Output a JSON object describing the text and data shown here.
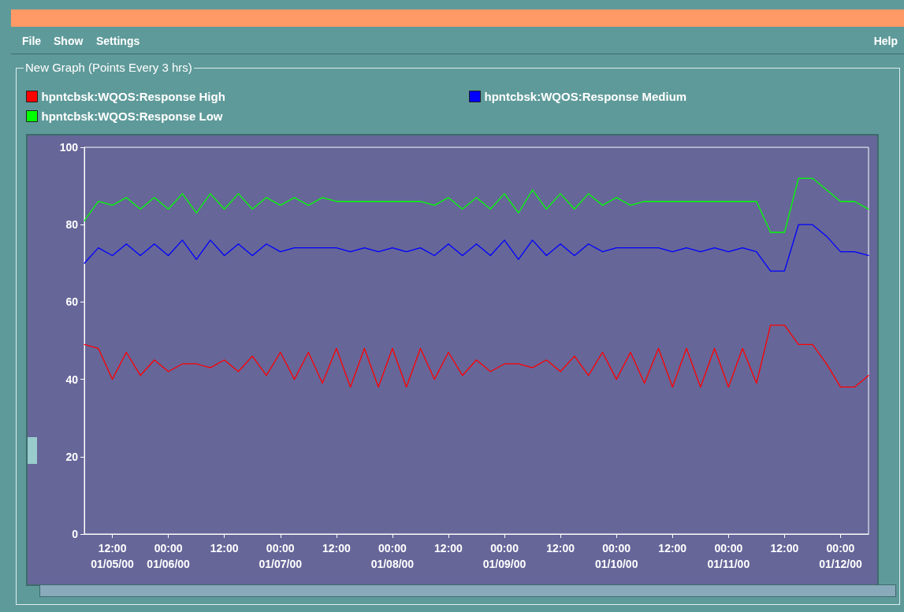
{
  "chart_data": {
    "type": "line",
    "title": "New Graph (Points Every 3 hrs)",
    "annotations": [
      "File",
      "Show",
      "Settings",
      "Help"
    ],
    "x": [
      "2000-01-05T06:00",
      "2000-01-05T09:00",
      "2000-01-05T12:00",
      "2000-01-05T15:00",
      "2000-01-05T18:00",
      "2000-01-05T21:00",
      "2000-01-06T00:00",
      "2000-01-06T03:00",
      "2000-01-06T06:00",
      "2000-01-06T09:00",
      "2000-01-06T12:00",
      "2000-01-06T15:00",
      "2000-01-06T18:00",
      "2000-01-06T21:00",
      "2000-01-07T00:00",
      "2000-01-07T03:00",
      "2000-01-07T06:00",
      "2000-01-07T09:00",
      "2000-01-07T12:00",
      "2000-01-07T15:00",
      "2000-01-07T18:00",
      "2000-01-07T21:00",
      "2000-01-08T00:00",
      "2000-01-08T03:00",
      "2000-01-08T06:00",
      "2000-01-08T09:00",
      "2000-01-08T12:00",
      "2000-01-08T15:00",
      "2000-01-08T18:00",
      "2000-01-08T21:00",
      "2000-01-09T00:00",
      "2000-01-09T03:00",
      "2000-01-09T06:00",
      "2000-01-09T09:00",
      "2000-01-09T12:00",
      "2000-01-09T15:00",
      "2000-01-09T18:00",
      "2000-01-09T21:00",
      "2000-01-10T00:00",
      "2000-01-10T03:00",
      "2000-01-10T06:00",
      "2000-01-10T09:00",
      "2000-01-10T12:00",
      "2000-01-10T15:00",
      "2000-01-10T18:00",
      "2000-01-10T21:00",
      "2000-01-11T00:00",
      "2000-01-11T03:00",
      "2000-01-11T06:00",
      "2000-01-11T09:00",
      "2000-01-11T12:00",
      "2000-01-11T15:00",
      "2000-01-11T18:00",
      "2000-01-11T21:00",
      "2000-01-12T00:00",
      "2000-01-12T03:00",
      "2000-01-12T06:00"
    ],
    "series": [
      {
        "name": "hpntcbsk:WQOS:Response High",
        "color": "#ff0000",
        "values": [
          49,
          48,
          40,
          47,
          41,
          45,
          42,
          44,
          44,
          43,
          45,
          42,
          46,
          41,
          47,
          40,
          47,
          39,
          48,
          38,
          48,
          38,
          48,
          38,
          48,
          40,
          47,
          41,
          45,
          42,
          44,
          44,
          43,
          45,
          42,
          46,
          41,
          47,
          40,
          47,
          39,
          48,
          38,
          48,
          38,
          48,
          38,
          48,
          39,
          54,
          54,
          49,
          49,
          44,
          38,
          38,
          41
        ]
      },
      {
        "name": "hpntcbsk:WQOS:Response Medium",
        "color": "#0000ff",
        "values": [
          70,
          74,
          72,
          75,
          72,
          75,
          72,
          76,
          71,
          76,
          72,
          75,
          72,
          75,
          73,
          74,
          74,
          74,
          74,
          73,
          74,
          73,
          74,
          73,
          74,
          72,
          75,
          72,
          75,
          72,
          76,
          71,
          76,
          72,
          75,
          72,
          75,
          73,
          74,
          74,
          74,
          74,
          73,
          74,
          73,
          74,
          73,
          74,
          73,
          68,
          68,
          80,
          80,
          77,
          73,
          73,
          72
        ]
      },
      {
        "name": "hpntcbsk:WQOS:Response Low",
        "color": "#00ff00",
        "values": [
          81,
          86,
          85,
          87,
          84,
          87,
          84,
          88,
          83,
          88,
          84,
          88,
          84,
          87,
          85,
          87,
          85,
          87,
          86,
          86,
          86,
          86,
          86,
          86,
          86,
          85,
          87,
          84,
          87,
          84,
          88,
          83,
          89,
          84,
          88,
          84,
          88,
          85,
          87,
          85,
          86,
          86,
          86,
          86,
          86,
          86,
          86,
          86,
          86,
          78,
          78,
          92,
          92,
          89,
          86,
          86,
          84
        ]
      }
    ],
    "xlim": [
      "2000-01-05T06:00",
      "2000-01-12T06:00"
    ],
    "xticks": [
      {
        "value": "2000-01-05T12:00",
        "label": "12:00\n01/05/00"
      },
      {
        "value": "2000-01-06T00:00",
        "label": "00:00\n01/06/00"
      },
      {
        "value": "2000-01-06T12:00",
        "label": "12:00"
      },
      {
        "value": "2000-01-07T00:00",
        "label": "00:00\n01/07/00"
      },
      {
        "value": "2000-01-07T12:00",
        "label": "12:00"
      },
      {
        "value": "2000-01-08T00:00",
        "label": "00:00\n01/08/00"
      },
      {
        "value": "2000-01-08T12:00",
        "label": "12:00"
      },
      {
        "value": "2000-01-09T00:00",
        "label": "00:00\n01/09/00"
      },
      {
        "value": "2000-01-09T12:00",
        "label": "12:00"
      },
      {
        "value": "2000-01-10T00:00",
        "label": "00:00\n01/10/00"
      },
      {
        "value": "2000-01-10T12:00",
        "label": "12:00"
      },
      {
        "value": "2000-01-11T00:00",
        "label": "00:00\n01/11/00"
      },
      {
        "value": "2000-01-11T12:00",
        "label": "12:00"
      },
      {
        "value": "2000-01-12T00:00",
        "label": "00:00\n01/12/00"
      }
    ],
    "ylim": [
      0,
      100
    ],
    "yticks": [
      0,
      20,
      40,
      60,
      80,
      100
    ],
    "grid": false,
    "legend": "top left",
    "marker": "none",
    "line_style": "solid"
  }
}
